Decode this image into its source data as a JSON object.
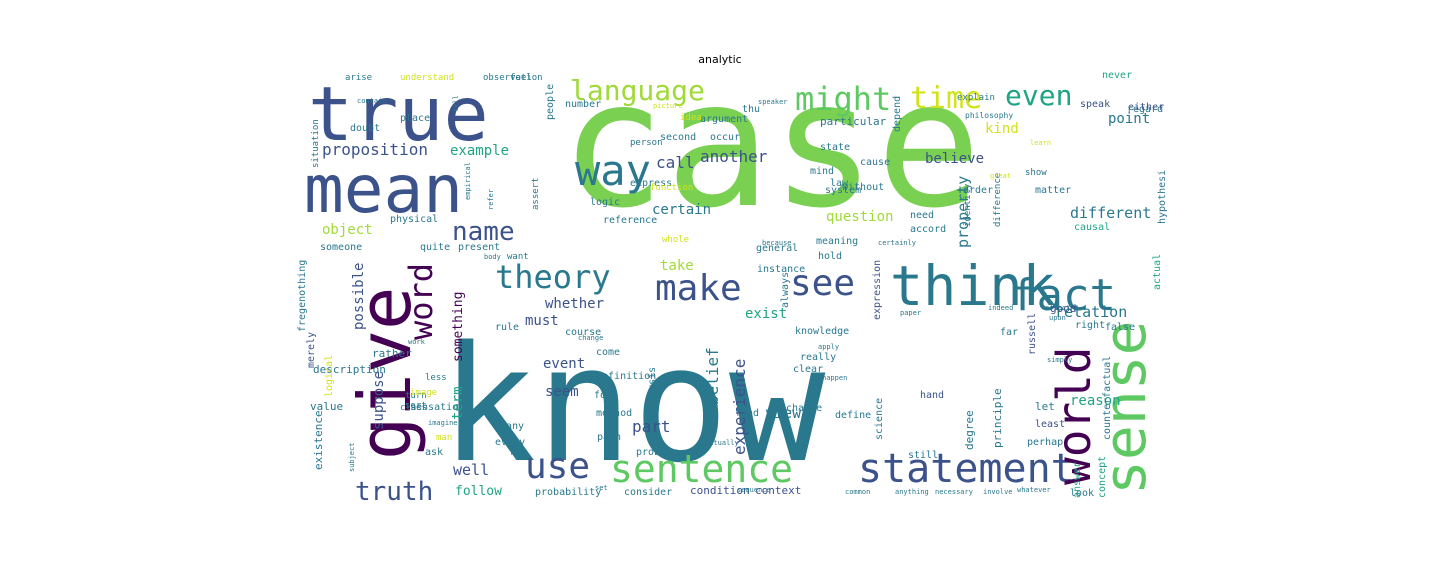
{
  "title": "analytic",
  "words": [
    {
      "text": "case",
      "color": "#7ad151"
    },
    {
      "text": "know",
      "color": "#2a788e"
    },
    {
      "text": "true",
      "color": "#3b528b"
    },
    {
      "text": "mean",
      "color": "#3b528b"
    },
    {
      "text": "give",
      "color": "#440154"
    },
    {
      "text": "think",
      "color": "#2a788e"
    },
    {
      "text": "statement",
      "color": "#3b528b"
    },
    {
      "text": "sense",
      "color": "#5ec962"
    },
    {
      "text": "world",
      "color": "#440154"
    },
    {
      "text": "fact",
      "color": "#2a788e"
    },
    {
      "text": "sentence",
      "color": "#5ec962"
    },
    {
      "text": "use",
      "color": "#3b528b"
    },
    {
      "text": "way",
      "color": "#2a788e"
    },
    {
      "text": "might",
      "color": "#5ec962"
    },
    {
      "text": "language",
      "color": "#a0da39"
    },
    {
      "text": "time",
      "color": "#d2e21b"
    },
    {
      "text": "even",
      "color": "#20a486"
    },
    {
      "text": "theory",
      "color": "#2a788e"
    },
    {
      "text": "make",
      "color": "#3b528b"
    },
    {
      "text": "see",
      "color": "#3b528b"
    },
    {
      "text": "word",
      "color": "#440154"
    },
    {
      "text": "name",
      "color": "#3b528b"
    },
    {
      "text": "truth",
      "color": "#3b528b"
    },
    {
      "text": "proposition",
      "color": "#3b528b"
    },
    {
      "text": "example",
      "color": "#20a486"
    },
    {
      "text": "another",
      "color": "#3b528b"
    },
    {
      "text": "call",
      "color": "#3b528b"
    },
    {
      "text": "certain",
      "color": "#2a788e"
    },
    {
      "text": "believe",
      "color": "#3b528b"
    },
    {
      "text": "kind",
      "color": "#d2e21b"
    },
    {
      "text": "point",
      "color": "#2a788e"
    },
    {
      "text": "different",
      "color": "#2a788e"
    },
    {
      "text": "question",
      "color": "#a0da39"
    },
    {
      "text": "object",
      "color": "#a0da39"
    },
    {
      "text": "property",
      "color": "#2a788e"
    },
    {
      "text": "relation",
      "color": "#2a788e"
    },
    {
      "text": "reason",
      "color": "#20a486"
    },
    {
      "text": "exist",
      "color": "#20a486"
    },
    {
      "text": "take",
      "color": "#a0da39"
    },
    {
      "text": "whether",
      "color": "#3b528b"
    },
    {
      "text": "must",
      "color": "#3b528b"
    },
    {
      "text": "possible",
      "color": "#3b528b"
    },
    {
      "text": "something",
      "color": "#440154"
    },
    {
      "text": "suppose",
      "color": "#3b528b"
    },
    {
      "text": "term",
      "color": "#20a486"
    },
    {
      "text": "event",
      "color": "#3b528b"
    },
    {
      "text": "seem",
      "color": "#3b528b"
    },
    {
      "text": "belief",
      "color": "#2a788e"
    },
    {
      "text": "part",
      "color": "#3b528b"
    },
    {
      "text": "experience",
      "color": "#3b528b"
    },
    {
      "text": "view",
      "color": "#2a788e"
    },
    {
      "text": "well",
      "color": "#3b528b"
    },
    {
      "text": "follow",
      "color": "#20a486"
    },
    {
      "text": "description",
      "color": "#2a788e"
    },
    {
      "text": "sensation",
      "color": "#2a788e"
    },
    {
      "text": "rather",
      "color": "#2a788e"
    },
    {
      "text": "merely",
      "color": "#3b528b"
    },
    {
      "text": "logical",
      "color": "#d2e21b"
    },
    {
      "text": "existence",
      "color": "#2a788e"
    },
    {
      "text": "value",
      "color": "#2a788e"
    },
    {
      "text": "physical",
      "color": "#2a788e"
    },
    {
      "text": "someone",
      "color": "#2a788e"
    },
    {
      "text": "quite",
      "color": "#2a788e"
    },
    {
      "text": "present",
      "color": "#2a788e"
    },
    {
      "text": "reference",
      "color": "#2a788e"
    },
    {
      "text": "logic",
      "color": "#2a788e"
    },
    {
      "text": "express",
      "color": "#2a788e"
    },
    {
      "text": "function",
      "color": "#d2e21b"
    },
    {
      "text": "state",
      "color": "#2a788e"
    },
    {
      "text": "system",
      "color": "#2a788e"
    },
    {
      "text": "particular",
      "color": "#2a788e"
    },
    {
      "text": "cause",
      "color": "#2a788e"
    },
    {
      "text": "argument",
      "color": "#2a788e"
    },
    {
      "text": "number",
      "color": "#2a788e"
    },
    {
      "text": "idea",
      "color": "#d2e21b"
    },
    {
      "text": "occur",
      "color": "#2a788e"
    },
    {
      "text": "second",
      "color": "#2a788e"
    },
    {
      "text": "person",
      "color": "#2a788e"
    },
    {
      "text": "people",
      "color": "#2a788e"
    },
    {
      "text": "place",
      "color": "#2a788e"
    },
    {
      "text": "doubt",
      "color": "#2a788e"
    },
    {
      "text": "situation",
      "color": "#2a788e"
    },
    {
      "text": "general",
      "color": "#2a788e"
    },
    {
      "text": "need",
      "color": "#2a788e"
    },
    {
      "text": "accord",
      "color": "#2a788e"
    },
    {
      "text": "meaning",
      "color": "#2a788e"
    },
    {
      "text": "hold",
      "color": "#2a788e"
    },
    {
      "text": "instance",
      "color": "#2a788e"
    },
    {
      "text": "knowledge",
      "color": "#2a788e"
    },
    {
      "text": "always",
      "color": "#2a788e"
    },
    {
      "text": "mind",
      "color": "#2a788e"
    },
    {
      "text": "law",
      "color": "#2a788e"
    },
    {
      "text": "without",
      "color": "#2a788e"
    },
    {
      "text": "order",
      "color": "#2a788e"
    },
    {
      "text": "matter",
      "color": "#2a788e"
    },
    {
      "text": "regard",
      "color": "#2a788e"
    },
    {
      "text": "never",
      "color": "#20a486"
    },
    {
      "text": "speak",
      "color": "#3b528b"
    },
    {
      "text": "either",
      "color": "#3b528b"
    },
    {
      "text": "depend",
      "color": "#2a788e"
    },
    {
      "text": "hypothesi",
      "color": "#2a788e"
    },
    {
      "text": "causal",
      "color": "#20a486"
    },
    {
      "text": "actual",
      "color": "#20a486"
    },
    {
      "text": "identity",
      "color": "#2a788e"
    },
    {
      "text": "difference",
      "color": "#2a788e"
    },
    {
      "text": "expression",
      "color": "#3b528b"
    },
    {
      "text": "russell",
      "color": "#3b528b"
    },
    {
      "text": "good",
      "color": "#3b528b"
    },
    {
      "text": "right",
      "color": "#2a788e"
    },
    {
      "text": "false",
      "color": "#2a788e"
    },
    {
      "text": "far",
      "color": "#2a788e"
    },
    {
      "text": "hand",
      "color": "#3b528b"
    },
    {
      "text": "let",
      "color": "#2a788e"
    },
    {
      "text": "least",
      "color": "#3b528b"
    },
    {
      "text": "perhap",
      "color": "#2a788e"
    },
    {
      "text": "principle",
      "color": "#2a788e"
    },
    {
      "text": "degree",
      "color": "#2a788e"
    },
    {
      "text": "science",
      "color": "#2a788e"
    },
    {
      "text": "define",
      "color": "#2a788e"
    },
    {
      "text": "chance",
      "color": "#2a788e"
    },
    {
      "text": "clear",
      "color": "#2a788e"
    },
    {
      "text": "really",
      "color": "#2a788e"
    },
    {
      "text": "find",
      "color": "#2a788e"
    },
    {
      "text": "problem",
      "color": "#2a788e"
    },
    {
      "text": "pain",
      "color": "#2a788e"
    },
    {
      "text": "method",
      "color": "#2a788e"
    },
    {
      "text": "form",
      "color": "#2a788e"
    },
    {
      "text": "definition",
      "color": "#2a788e"
    },
    {
      "text": "come",
      "color": "#2a788e"
    },
    {
      "text": "rule",
      "color": "#2a788e"
    },
    {
      "text": "course",
      "color": "#2a788e"
    },
    {
      "text": "many",
      "color": "#2a788e"
    },
    {
      "text": "every",
      "color": "#2a788e"
    },
    {
      "text": "ask",
      "color": "#2a788e"
    },
    {
      "text": "analysis",
      "color": "#2a788e"
    },
    {
      "text": "probability",
      "color": "#2a788e"
    },
    {
      "text": "consider",
      "color": "#2a788e"
    },
    {
      "text": "condition",
      "color": "#3b528b"
    },
    {
      "text": "context",
      "color": "#3b528b"
    },
    {
      "text": "answer",
      "color": "#20a486"
    },
    {
      "text": "concept",
      "color": "#20a486"
    },
    {
      "text": "look",
      "color": "#2a788e"
    },
    {
      "text": "counterfactual",
      "color": "#2a788e"
    },
    {
      "text": "still",
      "color": "#2a788e"
    },
    {
      "text": "less",
      "color": "#2a788e"
    },
    {
      "text": "turn",
      "color": "#2a788e"
    },
    {
      "text": "class",
      "color": "#2a788e"
    },
    {
      "text": "image",
      "color": "#d2e21b"
    },
    {
      "text": "sort",
      "color": "#2a788e"
    },
    {
      "text": "man",
      "color": "#d2e21b"
    },
    {
      "text": "fregenothing",
      "color": "#2a788e"
    },
    {
      "text": "want",
      "color": "#2a788e"
    },
    {
      "text": "assert",
      "color": "#2a788e"
    },
    {
      "text": "whole",
      "color": "#d2e21b"
    },
    {
      "text": "thu",
      "color": "#2a788e"
    },
    {
      "text": "show",
      "color": "#2a788e"
    },
    {
      "text": "explain",
      "color": "#2a788e"
    },
    {
      "text": "philosophy",
      "color": "#2a788e"
    },
    {
      "text": "observation",
      "color": "#2a788e"
    },
    {
      "text": "feel",
      "color": "#2a788e"
    },
    {
      "text": "understand",
      "color": "#d2e21b"
    },
    {
      "text": "arise",
      "color": "#2a788e"
    },
    {
      "text": "picture",
      "color": "#d2e21b"
    },
    {
      "text": "speaker",
      "color": "#2a788e"
    },
    {
      "text": "certainly",
      "color": "#2a788e"
    },
    {
      "text": "because",
      "color": "#2a788e"
    },
    {
      "text": "body",
      "color": "#2a788e"
    },
    {
      "text": "happen",
      "color": "#2a788e"
    },
    {
      "text": "apply",
      "color": "#2a788e"
    },
    {
      "text": "actually",
      "color": "#2a788e"
    },
    {
      "text": "imagine",
      "color": "#2a788e"
    },
    {
      "text": "real",
      "color": "#2a788e"
    },
    {
      "text": "set",
      "color": "#2a788e"
    },
    {
      "text": "sequence",
      "color": "#2a788e"
    },
    {
      "text": "common",
      "color": "#2a788e"
    },
    {
      "text": "anything",
      "color": "#2a788e"
    },
    {
      "text": "necessary",
      "color": "#2a788e"
    },
    {
      "text": "involve",
      "color": "#2a788e"
    },
    {
      "text": "whatever",
      "color": "#2a788e"
    },
    {
      "text": "simply",
      "color": "#2a788e"
    },
    {
      "text": "upon",
      "color": "#2a788e"
    },
    {
      "text": "effect",
      "color": "#2a788e"
    },
    {
      "text": "indeed",
      "color": "#2a788e"
    },
    {
      "text": "paper",
      "color": "#2a788e"
    },
    {
      "text": "great",
      "color": "#d2e21b"
    },
    {
      "text": "learn",
      "color": "#d2e21b"
    },
    {
      "text": "contain",
      "color": "#2a788e"
    },
    {
      "text": "change",
      "color": "#2a788e"
    },
    {
      "text": "work",
      "color": "#2a788e"
    },
    {
      "text": "subject",
      "color": "#2a788e"
    },
    {
      "text": "empirical",
      "color": "#2a788e"
    },
    {
      "text": "tell",
      "color": "#2a788e"
    },
    {
      "text": "refer",
      "color": "#2a788e"
    }
  ]
}
